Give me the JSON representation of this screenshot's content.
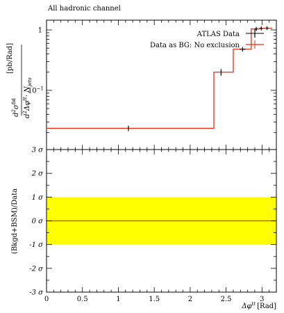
{
  "chart_data": {
    "type": "line",
    "title": "All hadronic channel",
    "legend_placement": "top-right",
    "main_panel": {
      "y_scale": "log",
      "ylim": [
        0.0105,
        1.45
      ],
      "ylabel_parts": {
        "numerator_d": "d",
        "numerator_exp": "2",
        "numerator_sigma": "σ",
        "numerator_sup": "fid",
        "denominator_d": "d",
        "denominator_exp": "2",
        "denominator_phi": "Δφ",
        "denominator_sup": "tt",
        "denominator_n": "· N",
        "denominator_sub": "jets",
        "units": "[pb/Rad]"
      },
      "yticks": [
        {
          "value": 1,
          "label": "1"
        },
        {
          "value": 0.1,
          "label": "10",
          "exp": "−1"
        }
      ],
      "series": [
        {
          "name": "ATLAS Data",
          "kind": "points",
          "color": "#000000",
          "x": [
            1.14,
            2.43,
            2.73,
            2.92,
            2.99,
            3.07
          ],
          "xerr": [
            0,
            0,
            0.04,
            0.02,
            0.02,
            0.02
          ],
          "y": [
            0.0236,
            0.2,
            0.48,
            1.04,
            1.06,
            1.07
          ],
          "yerr": [
            0.0024,
            0.025,
            0.04,
            0.08,
            0.08,
            0.08
          ]
        },
        {
          "name": "Data as BG: No exclusion",
          "kind": "step",
          "color": "#ee2b10",
          "edges": [
            0,
            2.33,
            2.6,
            2.85,
            2.96,
            3.03,
            3.14159
          ],
          "values": [
            0.0236,
            0.2,
            0.48,
            1.04,
            1.06,
            1.07
          ]
        }
      ]
    },
    "ratio_panel": {
      "ylabel": "(Bkgd+BSM)/Data",
      "ylim": [
        -3,
        3
      ],
      "band": {
        "low": -1,
        "high": 1,
        "color": "#ffff00"
      },
      "line": {
        "value": 0,
        "color": "#ee2b10"
      },
      "yticks": [
        {
          "value": 3,
          "label": "3 σ"
        },
        {
          "value": 2,
          "label": "2 σ"
        },
        {
          "value": 1,
          "label": "1 σ"
        },
        {
          "value": 0,
          "label": "0 σ"
        },
        {
          "value": -1,
          "label": "-1 σ"
        },
        {
          "value": -2,
          "label": "-2 σ"
        },
        {
          "value": -3,
          "label": "-3 σ"
        }
      ]
    },
    "x_axis": {
      "xlim": [
        0,
        3.2
      ],
      "label_main": "Δφ",
      "label_sup": "tt",
      "label_units": "[Rad]",
      "ticks": [
        {
          "value": 0,
          "label": "0"
        },
        {
          "value": 0.5,
          "label": "0.5"
        },
        {
          "value": 1,
          "label": "1"
        },
        {
          "value": 1.5,
          "label": "1.5"
        },
        {
          "value": 2,
          "label": "2"
        },
        {
          "value": 2.5,
          "label": "2.5"
        },
        {
          "value": 3,
          "label": "3"
        }
      ]
    }
  }
}
